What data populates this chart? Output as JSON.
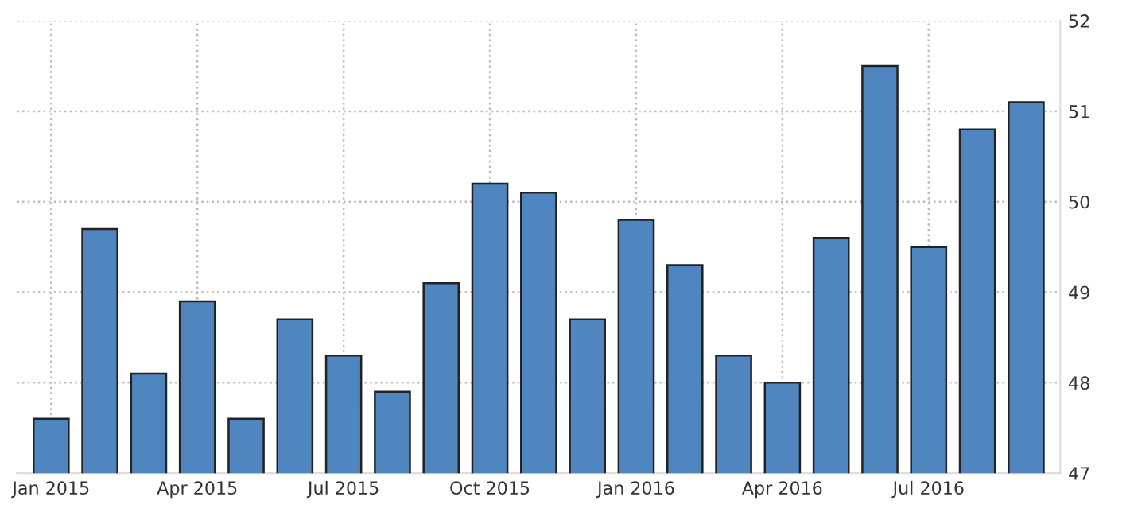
{
  "chart_data": {
    "type": "bar",
    "categories": [
      "Jan 2015",
      null,
      null,
      "Apr 2015",
      null,
      null,
      "Jul 2015",
      null,
      null,
      "Oct 2015",
      null,
      null,
      "Jan 2016",
      null,
      null,
      "Apr 2016",
      null,
      null,
      "Jul 2016",
      null,
      null
    ],
    "values": [
      47.6,
      49.7,
      48.1,
      48.9,
      47.6,
      48.7,
      48.3,
      47.9,
      49.1,
      50.2,
      50.1,
      48.7,
      49.8,
      49.3,
      48.3,
      48.0,
      49.6,
      51.5,
      49.5,
      50.8,
      51.1
    ],
    "color": "#4f86c0",
    "ylim": [
      47,
      52
    ],
    "yticks": [
      47,
      48,
      49,
      50,
      51,
      52
    ],
    "grid": true,
    "legend": false
  }
}
